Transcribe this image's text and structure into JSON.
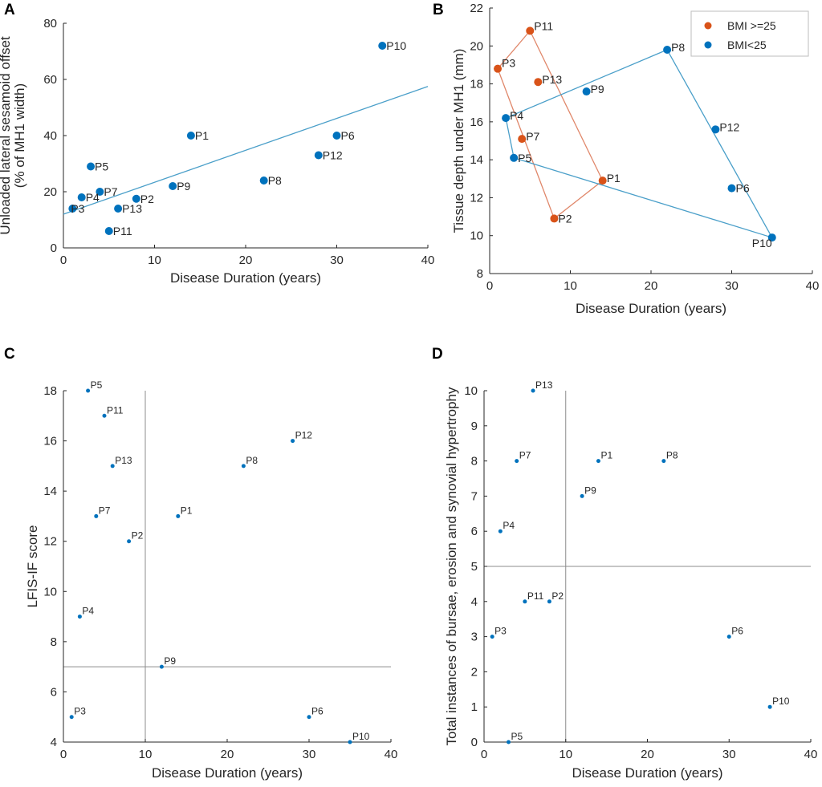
{
  "colors": {
    "blue": "#0072BD",
    "orange": "#D95319",
    "fitline": "#4a9fc9",
    "axis": "#262626",
    "refline": "#8c8c8c"
  },
  "chart_data": [
    {
      "panel": "A",
      "type": "scatter",
      "xlabel": "Disease Duration (years)",
      "ylabel": [
        "Unloaded lateral sesamoid offset",
        "(% of MH1 width)"
      ],
      "xlim": [
        0,
        40
      ],
      "ylim": [
        0,
        80
      ],
      "xticks": [
        0,
        10,
        20,
        30,
        40
      ],
      "yticks": [
        0,
        20,
        40,
        60,
        80
      ],
      "points": [
        {
          "label": "P10",
          "x": 35,
          "y": 72
        },
        {
          "label": "P1",
          "x": 14,
          "y": 40
        },
        {
          "label": "P6",
          "x": 30,
          "y": 40
        },
        {
          "label": "P12",
          "x": 28,
          "y": 33
        },
        {
          "label": "P5",
          "x": 3,
          "y": 29
        },
        {
          "label": "P8",
          "x": 22,
          "y": 24
        },
        {
          "label": "P9",
          "x": 12,
          "y": 22
        },
        {
          "label": "P7",
          "x": 4,
          "y": 20
        },
        {
          "label": "P4",
          "x": 2,
          "y": 18
        },
        {
          "label": "P2",
          "x": 8,
          "y": 17.5
        },
        {
          "label": "P3",
          "x": 1,
          "y": 14
        },
        {
          "label": "P13",
          "x": 6,
          "y": 14
        },
        {
          "label": "P11",
          "x": 5,
          "y": 6
        }
      ],
      "fit_line": {
        "x": [
          0,
          40
        ],
        "y": [
          12,
          57.5
        ]
      }
    },
    {
      "panel": "B",
      "type": "scatter",
      "xlabel": "Disease Duration (years)",
      "ylabel": [
        "Tissue depth under MH1 (mm)"
      ],
      "xlim": [
        0,
        40
      ],
      "ylim": [
        8,
        22
      ],
      "xticks": [
        0,
        10,
        20,
        30,
        40
      ],
      "yticks": [
        8,
        10,
        12,
        14,
        16,
        18,
        20,
        22
      ],
      "legend": {
        "position": "top-right",
        "entries": [
          "BMI >=25",
          "BMI<25"
        ]
      },
      "series": [
        {
          "name": "BMI >=25",
          "points": [
            {
              "label": "P11",
              "x": 5,
              "y": 20.8
            },
            {
              "label": "P3",
              "x": 1,
              "y": 18.8
            },
            {
              "label": "P13",
              "x": 6,
              "y": 18.1
            },
            {
              "label": "P7",
              "x": 4,
              "y": 15.1
            },
            {
              "label": "P1",
              "x": 14,
              "y": 12.9
            },
            {
              "label": "P2",
              "x": 8,
              "y": 10.9
            }
          ],
          "hull": [
            "P11",
            "P3",
            "P2",
            "P1"
          ]
        },
        {
          "name": "BMI<25",
          "points": [
            {
              "label": "P8",
              "x": 22,
              "y": 19.8
            },
            {
              "label": "P9",
              "x": 12,
              "y": 17.6
            },
            {
              "label": "P4",
              "x": 2,
              "y": 16.2
            },
            {
              "label": "P12",
              "x": 28,
              "y": 15.6
            },
            {
              "label": "P5",
              "x": 3,
              "y": 14.1
            },
            {
              "label": "P6",
              "x": 30,
              "y": 12.5
            },
            {
              "label": "P10",
              "x": 35,
              "y": 9.9
            }
          ],
          "hull": [
            "P8",
            "P4",
            "P5",
            "P10"
          ]
        }
      ]
    },
    {
      "panel": "C",
      "type": "scatter",
      "xlabel": "Disease Duration (years)",
      "ylabel": [
        "LFIS-IF score"
      ],
      "xlim": [
        0,
        40
      ],
      "ylim": [
        4,
        18
      ],
      "xticks": [
        0,
        10,
        20,
        30,
        40
      ],
      "yticks": [
        4,
        6,
        8,
        10,
        12,
        14,
        16,
        18
      ],
      "ref_lines": {
        "x": 10,
        "y": 7
      },
      "points": [
        {
          "label": "P5",
          "x": 3,
          "y": 18
        },
        {
          "label": "P11",
          "x": 5,
          "y": 17
        },
        {
          "label": "P12",
          "x": 28,
          "y": 16
        },
        {
          "label": "P13",
          "x": 6,
          "y": 15
        },
        {
          "label": "P8",
          "x": 22,
          "y": 15
        },
        {
          "label": "P7",
          "x": 4,
          "y": 13
        },
        {
          "label": "P1",
          "x": 14,
          "y": 13
        },
        {
          "label": "P2",
          "x": 8,
          "y": 12
        },
        {
          "label": "P4",
          "x": 2,
          "y": 9
        },
        {
          "label": "P9",
          "x": 12,
          "y": 7
        },
        {
          "label": "P3",
          "x": 1,
          "y": 5
        },
        {
          "label": "P6",
          "x": 30,
          "y": 5
        },
        {
          "label": "P10",
          "x": 35,
          "y": 4
        }
      ]
    },
    {
      "panel": "D",
      "type": "scatter",
      "xlabel": "Disease Duration (years)",
      "ylabel": [
        "Total instances of bursae, erosion and synovial hypertrophy"
      ],
      "xlim": [
        0,
        40
      ],
      "ylim": [
        0,
        10
      ],
      "xticks": [
        0,
        10,
        20,
        30,
        40
      ],
      "yticks": [
        0,
        1,
        2,
        3,
        4,
        5,
        6,
        7,
        8,
        9,
        10
      ],
      "ref_lines": {
        "x": 10,
        "y": 5
      },
      "points": [
        {
          "label": "P13",
          "x": 6,
          "y": 10
        },
        {
          "label": "P7",
          "x": 4,
          "y": 8
        },
        {
          "label": "P1",
          "x": 14,
          "y": 8
        },
        {
          "label": "P8",
          "x": 22,
          "y": 8
        },
        {
          "label": "P9",
          "x": 12,
          "y": 7
        },
        {
          "label": "P4",
          "x": 2,
          "y": 6
        },
        {
          "label": "P11",
          "x": 5,
          "y": 4
        },
        {
          "label": "P2",
          "x": 8,
          "y": 4
        },
        {
          "label": "P3",
          "x": 1,
          "y": 3
        },
        {
          "label": "P6",
          "x": 30,
          "y": 3
        },
        {
          "label": "P10",
          "x": 35,
          "y": 1
        },
        {
          "label": "P5",
          "x": 3,
          "y": 0
        }
      ]
    }
  ]
}
